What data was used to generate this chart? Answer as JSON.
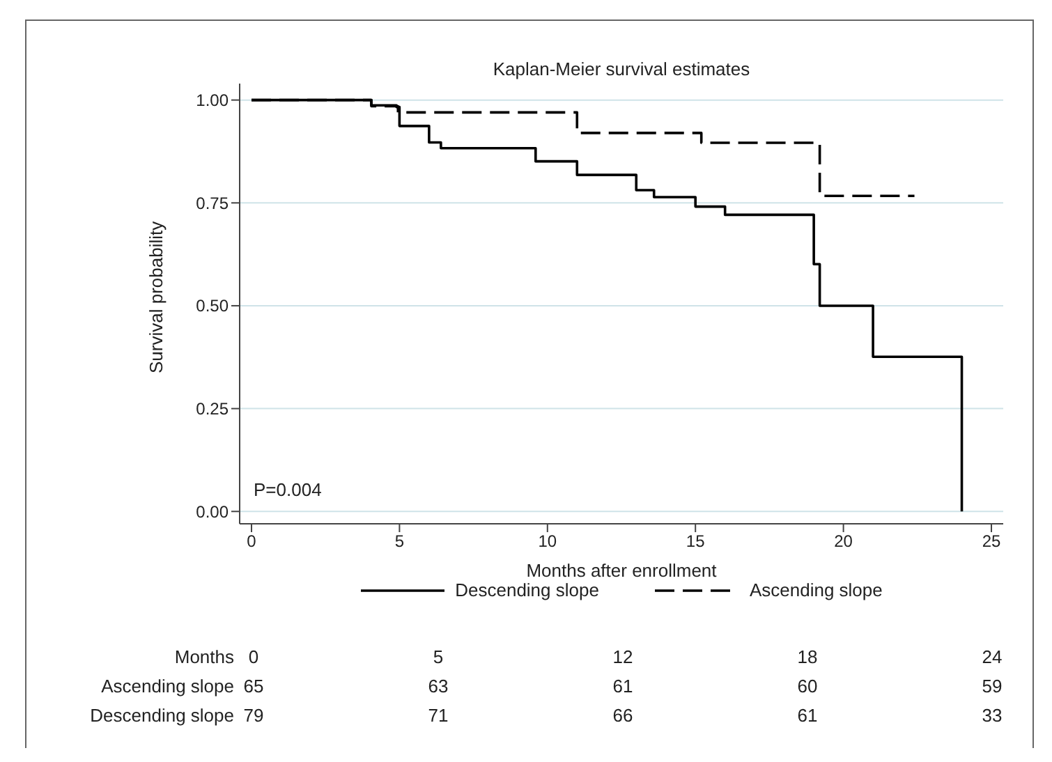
{
  "chart_data": {
    "type": "step",
    "title": "Kaplan-Meier survival estimates",
    "xlabel": "Months after enrollment",
    "ylabel": "Survival probability",
    "xlim": [
      -0.4,
      25.4
    ],
    "xticks": [
      0,
      5,
      10,
      15,
      20,
      25
    ],
    "ylim": [
      -0.03,
      1.04
    ],
    "yticks": [
      {
        "value": 0,
        "label": "0.00"
      },
      {
        "value": 0.25,
        "label": "0.25"
      },
      {
        "value": 0.5,
        "label": "0.50"
      },
      {
        "value": 0.75,
        "label": "0.75"
      },
      {
        "value": 1,
        "label": "1.00"
      }
    ],
    "grid": "y",
    "legend": "bottom",
    "marker": "none",
    "series": [
      {
        "name": "Descending slope",
        "color": "#000000",
        "line_style": "solid",
        "x": [
          0,
          4.05,
          4.9,
          5.0,
          6.0,
          6.4,
          9.6,
          11,
          13,
          13.6,
          15,
          16,
          19,
          19.2,
          21,
          24
        ],
        "values": [
          1,
          0.987,
          0.983,
          0.937,
          0.897,
          0.883,
          0.851,
          0.818,
          0.781,
          0.764,
          0.741,
          0.721,
          0.601,
          0.5,
          0.376,
          0
        ]
      },
      {
        "name": "Ascending slope",
        "color": "#000000",
        "line_style": "dashed",
        "x": [
          0,
          4.05,
          4.95,
          11,
          15.2,
          19.2,
          22.4
        ],
        "values": [
          1,
          0.985,
          0.97,
          0.92,
          0.896,
          0.767,
          0.767
        ]
      }
    ],
    "annotations": [
      "P=0.004",
      "Months",
      "0",
      "5",
      "12",
      "18",
      "24",
      "Ascending slope",
      "65",
      "63",
      "61",
      "60",
      "59",
      "Descending slope",
      "79",
      "71",
      "66",
      "61",
      "33"
    ]
  }
}
